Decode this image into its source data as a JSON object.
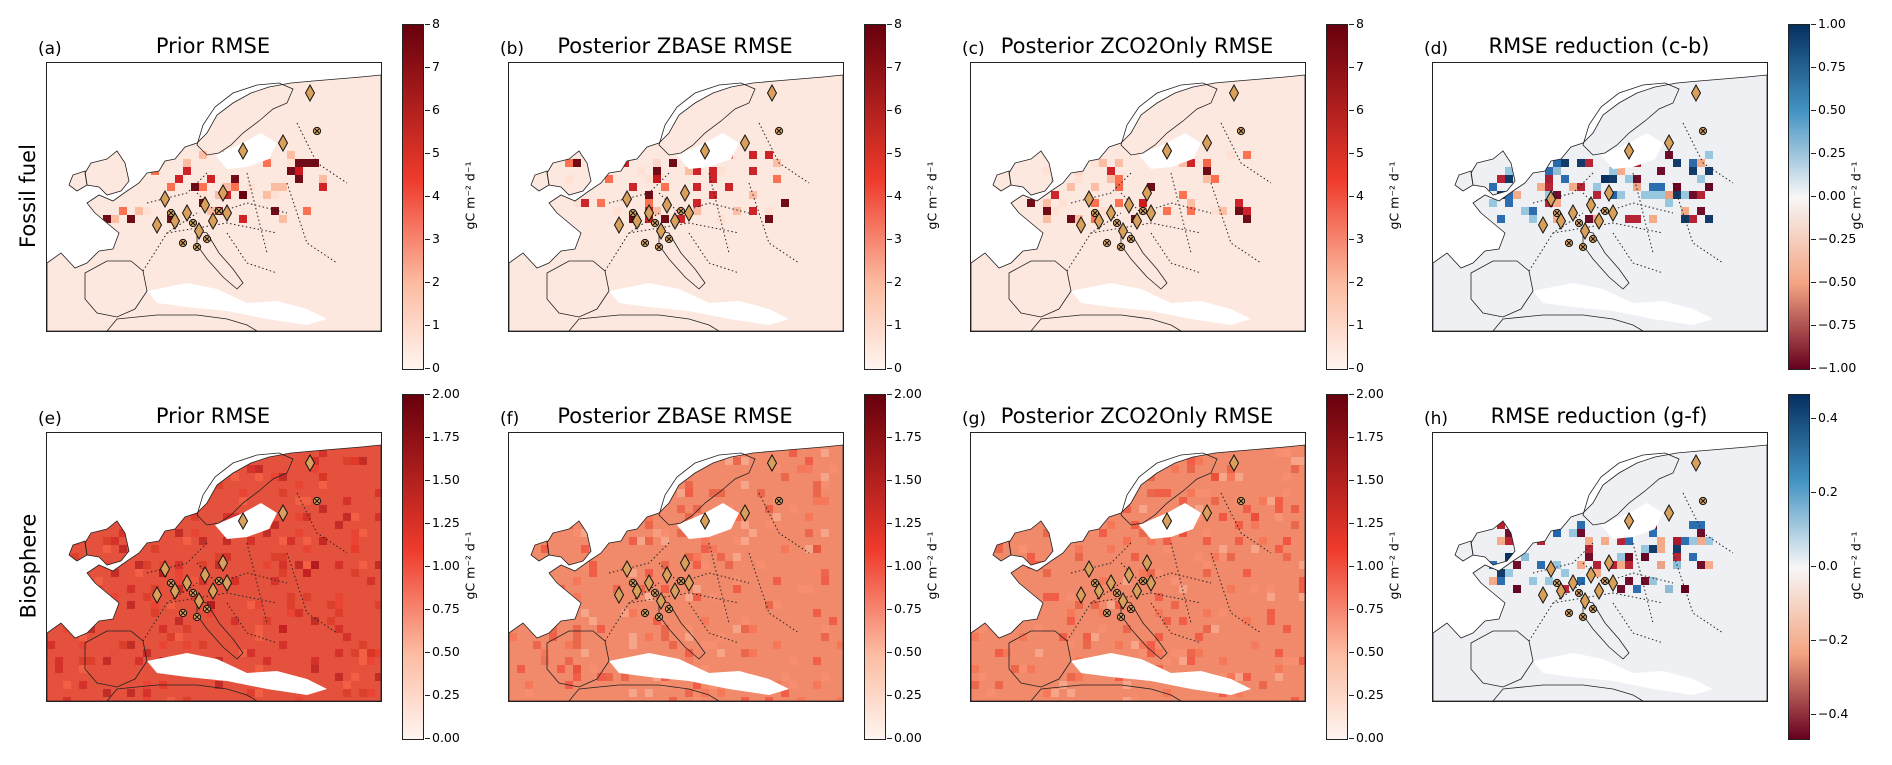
{
  "rows": [
    {
      "label": "Fossil fuel"
    },
    {
      "label": "Biosphere"
    }
  ],
  "panels": [
    {
      "letter": "(a)",
      "title": "Prior RMSE",
      "fill": "light"
    },
    {
      "letter": "(b)",
      "title": "Posterior ZBASE RMSE",
      "fill": "light"
    },
    {
      "letter": "(c)",
      "title": "Posterior ZCO2Only RMSE",
      "fill": "light"
    },
    {
      "letter": "(d)",
      "title": "RMSE reduction (c-b)",
      "fill": "diverging"
    },
    {
      "letter": "(e)",
      "title": "Prior RMSE",
      "fill": "strong"
    },
    {
      "letter": "(f)",
      "title": "Posterior ZBASE RMSE",
      "fill": "medium"
    },
    {
      "letter": "(g)",
      "title": "Posterior ZCO2Only RMSE",
      "fill": "medium"
    },
    {
      "letter": "(h)",
      "title": "RMSE reduction (g-f)",
      "fill": "diverging"
    }
  ],
  "colorbars": [
    {
      "cmap": "Reds",
      "ticks": [
        "8",
        "7",
        "6",
        "5",
        "4",
        "3",
        "2",
        "1",
        "0"
      ],
      "label": "gC m⁻² d⁻¹"
    },
    {
      "cmap": "Reds",
      "ticks": [
        "8",
        "7",
        "6",
        "5",
        "4",
        "3",
        "2",
        "1",
        "0"
      ],
      "label": "gC m⁻² d⁻¹"
    },
    {
      "cmap": "Reds",
      "ticks": [
        "8",
        "7",
        "6",
        "5",
        "4",
        "3",
        "2",
        "1",
        "0"
      ],
      "label": "gC m⁻² d⁻¹"
    },
    {
      "cmap": "RdBu",
      "ticks": [
        "1.00",
        "0.75",
        "0.50",
        "0.25",
        "0.00",
        "−0.25",
        "−0.50",
        "−0.75",
        "−1.00"
      ],
      "label": "gC m⁻² d⁻¹"
    },
    {
      "cmap": "Reds",
      "ticks": [
        "2.00",
        "1.75",
        "1.50",
        "1.25",
        "1.00",
        "0.75",
        "0.50",
        "0.25",
        "0.00"
      ],
      "label": "gC m⁻² d⁻¹"
    },
    {
      "cmap": "Reds",
      "ticks": [
        "2.00",
        "1.75",
        "1.50",
        "1.25",
        "1.00",
        "0.75",
        "0.50",
        "0.25",
        "0.00"
      ],
      "label": "gC m⁻² d⁻¹"
    },
    {
      "cmap": "Reds",
      "ticks": [
        "2.00",
        "1.75",
        "1.50",
        "1.25",
        "1.00",
        "0.75",
        "0.50",
        "0.25",
        "0.00"
      ],
      "label": "gC m⁻² d⁻¹"
    },
    {
      "cmap": "RdBu",
      "ticks": [
        "0.4",
        "0.2",
        "0.0",
        "−0.2",
        "−0.4"
      ],
      "label": "gC m⁻² d⁻¹"
    }
  ],
  "colors": {
    "reds_top": "#67000d",
    "reds_mid": "#ef3b2c",
    "reds_bottom": "#fff5f0",
    "blue_top": "#053061",
    "div_mid": "#f7f7f7",
    "red_bottom": "#67001f",
    "station_fill": "#d9a05b",
    "border": "#222222"
  },
  "legend_markers": {
    "diamond": "diamond-station-icon",
    "cross": "cross-station-icon"
  }
}
